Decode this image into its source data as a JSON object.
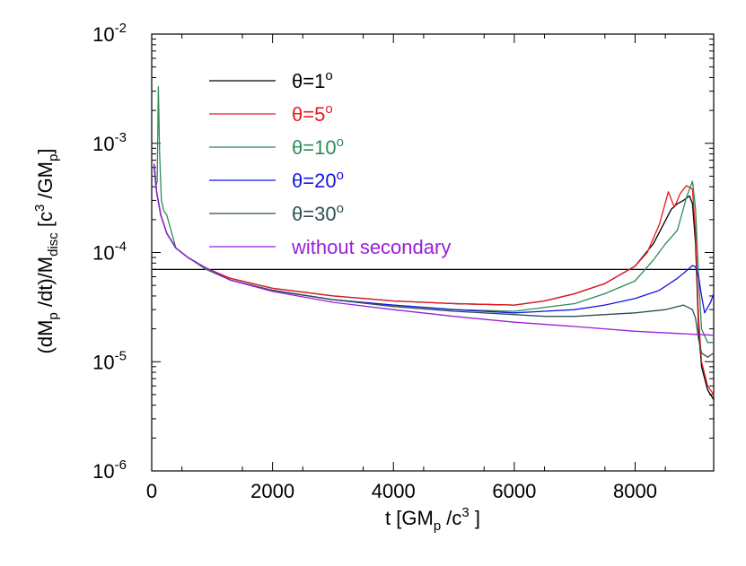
{
  "chart_data": {
    "type": "line",
    "xlabel": "t [GM_p /c^3 ]",
    "ylabel": "(dM_p /dt)/M_disc [c^3 /GM_p]",
    "xlim": [
      0,
      9300
    ],
    "ylim": [
      1e-06,
      0.01
    ],
    "yscale": "log",
    "x_ticks": [
      "0",
      "2000",
      "4000",
      "6000",
      "8000"
    ],
    "y_ticks": [
      {
        "base": "10",
        "exp": "-6"
      },
      {
        "base": "10",
        "exp": "-5"
      },
      {
        "base": "10",
        "exp": "-4"
      },
      {
        "base": "10",
        "exp": "-3"
      },
      {
        "base": "10",
        "exp": "-2"
      }
    ],
    "legend_position": "top-center",
    "series": [
      {
        "name": "θ=1°",
        "legend_text": "θ=1",
        "legend_sup": "o",
        "color": "#000000",
        "x": [
          40,
          80,
          150,
          250,
          400,
          600,
          900,
          1300,
          2000,
          3000,
          4000,
          5000,
          6000,
          6500,
          7000,
          7500,
          8000,
          8300,
          8600,
          8700,
          8800,
          8900,
          8950,
          9000,
          9050,
          9100,
          9200,
          9300
        ],
        "y": [
          0.00065,
          0.00036,
          0.00022,
          0.00015,
          0.00011,
          9e-05,
          7.2e-05,
          5.8e-05,
          4.7e-05,
          4e-05,
          3.6e-05,
          3.4e-05,
          3.3e-05,
          3.6e-05,
          4.2e-05,
          5.2e-05,
          7.5e-05,
          0.00012,
          0.00025,
          0.00028,
          0.0003,
          0.00033,
          0.00028,
          0.00012,
          2e-05,
          9e-06,
          5.5e-06,
          4.5e-06
        ]
      },
      {
        "name": "θ=5°",
        "legend_text": "θ=5",
        "legend_sup": "o",
        "color": "#e8191e",
        "x": [
          40,
          80,
          150,
          250,
          400,
          600,
          900,
          1300,
          2000,
          3000,
          4000,
          5000,
          6000,
          6500,
          7000,
          7500,
          8000,
          8200,
          8400,
          8550,
          8650,
          8750,
          8850,
          8950,
          9000,
          9050,
          9100,
          9200,
          9300
        ],
        "y": [
          0.00065,
          0.00036,
          0.00022,
          0.00015,
          0.00011,
          9e-05,
          7.2e-05,
          5.8e-05,
          4.7e-05,
          4e-05,
          3.6e-05,
          3.4e-05,
          3.3e-05,
          3.6e-05,
          4.2e-05,
          5.2e-05,
          7.5e-05,
          0.0001,
          0.00018,
          0.00036,
          0.00026,
          0.00035,
          0.00041,
          0.00038,
          0.00015,
          2.5e-05,
          1e-05,
          6e-06,
          5e-06
        ]
      },
      {
        "name": "θ=10°",
        "legend_text": "θ=10",
        "legend_sup": "o",
        "color": "#2e8b57",
        "x": [
          40,
          70,
          90,
          110,
          130,
          160,
          200,
          250,
          400,
          600,
          900,
          1300,
          2000,
          3000,
          4000,
          5000,
          6000,
          7000,
          7500,
          8000,
          8300,
          8500,
          8700,
          8850,
          8950,
          9000,
          9050,
          9100,
          9200,
          9300
        ],
        "y": [
          0.0006,
          0.0004,
          0.00045,
          0.0033,
          0.0008,
          0.0003,
          0.00024,
          0.00022,
          0.00011,
          9e-05,
          7e-05,
          5.6e-05,
          4.5e-05,
          3.7e-05,
          3.3e-05,
          3e-05,
          2.9e-05,
          3.4e-05,
          4.2e-05,
          5.5e-05,
          8.5e-05,
          0.00012,
          0.00016,
          0.00032,
          0.00045,
          0.00025,
          6e-05,
          2e-05,
          1.5e-05,
          1.5e-05
        ]
      },
      {
        "name": "θ=20°",
        "legend_text": "θ=20",
        "legend_sup": "o",
        "color": "#1515e6",
        "x": [
          40,
          80,
          150,
          250,
          400,
          600,
          900,
          1300,
          2000,
          3000,
          4000,
          5000,
          6000,
          6500,
          7000,
          7500,
          8000,
          8400,
          8700,
          8850,
          8950,
          9000,
          9050,
          9100,
          9150,
          9250,
          9300
        ],
        "y": [
          0.00065,
          0.00036,
          0.00022,
          0.00015,
          0.00011,
          9e-05,
          7.2e-05,
          5.6e-05,
          4.5e-05,
          3.7e-05,
          3.3e-05,
          3e-05,
          2.8e-05,
          2.9e-05,
          3e-05,
          3.3e-05,
          3.8e-05,
          4.5e-05,
          5.8e-05,
          6.8e-05,
          7.6e-05,
          7.4e-05,
          6e-05,
          4e-05,
          2.8e-05,
          3.5e-05,
          4.2e-05
        ]
      },
      {
        "name": "θ=30°",
        "legend_text": "θ=30",
        "legend_sup": "o",
        "color": "#2f4f4f",
        "x": [
          40,
          80,
          150,
          250,
          400,
          600,
          900,
          1300,
          2000,
          3000,
          4000,
          5000,
          6000,
          6500,
          7000,
          7500,
          8000,
          8500,
          8800,
          8950,
          9000,
          9050,
          9100,
          9200,
          9300
        ],
        "y": [
          0.00065,
          0.00036,
          0.00022,
          0.00015,
          0.00011,
          9e-05,
          7.2e-05,
          5.6e-05,
          4.5e-05,
          3.7e-05,
          3.2e-05,
          2.9e-05,
          2.7e-05,
          2.6e-05,
          2.6e-05,
          2.7e-05,
          2.8e-05,
          3e-05,
          3.3e-05,
          3e-05,
          2.5e-05,
          1.6e-05,
          1.2e-05,
          1.1e-05,
          1.2e-05
        ]
      },
      {
        "name": "without secondary",
        "legend_text": "without secondary",
        "legend_sup": "",
        "color": "#9b1fd9",
        "x": [
          40,
          80,
          150,
          250,
          400,
          600,
          900,
          1300,
          2000,
          3000,
          4000,
          5000,
          6000,
          7000,
          8000,
          9000,
          9300
        ],
        "y": [
          0.00065,
          0.00036,
          0.00022,
          0.00015,
          0.00011,
          9e-05,
          7.2e-05,
          5.6e-05,
          4.4e-05,
          3.5e-05,
          3e-05,
          2.6e-05,
          2.3e-05,
          2.1e-05,
          1.9e-05,
          1.78e-05,
          1.75e-05
        ]
      }
    ],
    "reference_lines": [
      {
        "y": 7e-05,
        "color": "#000000"
      }
    ]
  }
}
